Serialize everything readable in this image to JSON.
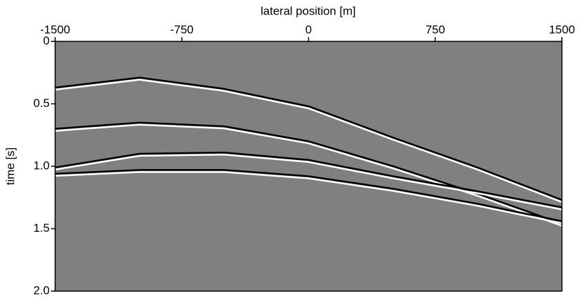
{
  "chart_data": {
    "type": "line",
    "xlabel": "lateral position [m]",
    "ylabel": "time [s]",
    "xlim": [
      -1500,
      1500
    ],
    "xticks": [
      -1500,
      -750,
      0,
      750,
      1500
    ],
    "ylim": [
      0,
      2
    ],
    "yticks": [
      0,
      0.5,
      {
        "value": 1,
        "label": "1.0"
      },
      1.5,
      {
        "value": 2,
        "label": "2.0"
      }
    ],
    "y_inverted": true,
    "background": "#808080",
    "x": [
      -1500,
      -1000,
      -500,
      0,
      500,
      1000,
      1500
    ],
    "series": [
      {
        "color": "#000000",
        "values": [
          0.37,
          0.29,
          0.38,
          0.52,
          0.77,
          1.01,
          1.27
        ]
      },
      {
        "color": "#000000",
        "values": [
          0.7,
          0.65,
          0.68,
          0.8,
          1.0,
          1.22,
          1.46
        ]
      },
      {
        "color": "#000000",
        "values": [
          1.01,
          0.9,
          0.89,
          0.95,
          1.08,
          1.2,
          1.33
        ]
      },
      {
        "color": "#000000",
        "values": [
          1.06,
          1.03,
          1.03,
          1.08,
          1.18,
          1.3,
          1.44
        ]
      }
    ]
  }
}
